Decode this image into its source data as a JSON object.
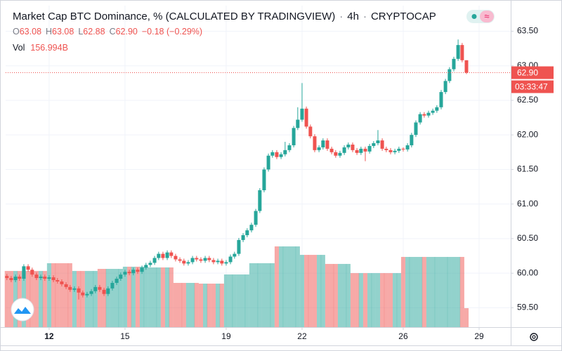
{
  "chart_data": {
    "type": "candlestick",
    "title": "Market Cap BTC Dominance, % (CALCULATED BY TRADINGVIEW)",
    "interval": "4h",
    "exchange": "CRYPTOCAP",
    "legend_ohlc": [
      {
        "key": "O",
        "value": "63.08"
      },
      {
        "key": "H",
        "value": "63.08"
      },
      {
        "key": "L",
        "value": "62.88"
      },
      {
        "key": "C",
        "value": "62.90"
      }
    ],
    "change": "−0.18 (−0.29%)",
    "up_color": "#26a69a",
    "down_color": "#ef5350",
    "grid": true,
    "xlim": [
      10.28,
      30.25
    ],
    "xticks": [
      12,
      15,
      19,
      22,
      26,
      29
    ],
    "ylim": [
      59.22,
      63.87
    ],
    "yticks": [
      {
        "value": 59.5,
        "label": "59.50"
      },
      {
        "value": 60,
        "label": "60.00"
      },
      {
        "value": 60.5,
        "label": "60.50"
      },
      {
        "value": 61,
        "label": "61.00"
      },
      {
        "value": 61.5,
        "label": "61.50"
      },
      {
        "value": 62,
        "label": "62.00"
      },
      {
        "value": 62.5,
        "label": "62.50"
      },
      {
        "value": 63,
        "label": "63.00"
      },
      {
        "value": 63.5,
        "label": "63.50"
      }
    ],
    "last_price": {
      "value": 62.9,
      "label": "62.90"
    },
    "countdown": "03:33:47",
    "x": [
      10.33,
      10.5,
      10.67,
      10.83,
      11,
      11.17,
      11.33,
      11.5,
      11.67,
      11.83,
      12,
      12.17,
      12.33,
      12.5,
      12.67,
      12.83,
      13,
      13.17,
      13.33,
      13.5,
      13.67,
      13.83,
      14,
      14.17,
      14.33,
      14.5,
      14.67,
      14.83,
      15,
      15.17,
      15.33,
      15.5,
      15.67,
      15.83,
      16,
      16.17,
      16.33,
      16.5,
      16.67,
      16.83,
      17,
      17.17,
      17.33,
      17.5,
      17.67,
      17.83,
      18,
      18.17,
      18.33,
      18.5,
      18.67,
      18.83,
      19,
      19.17,
      19.33,
      19.5,
      19.67,
      19.83,
      20,
      20.17,
      20.33,
      20.5,
      20.67,
      20.83,
      21,
      21.17,
      21.33,
      21.5,
      21.67,
      21.83,
      22,
      22.17,
      22.33,
      22.5,
      22.67,
      22.83,
      23,
      23.17,
      23.33,
      23.5,
      23.67,
      23.83,
      24,
      24.17,
      24.33,
      24.5,
      24.67,
      24.83,
      25,
      25.17,
      25.33,
      25.5,
      25.67,
      25.83,
      26,
      26.17,
      26.33,
      26.5,
      26.67,
      26.83,
      27,
      27.17,
      27.33,
      27.5,
      27.67,
      27.83,
      28,
      28.17,
      28.33,
      28.5
    ],
    "open": [
      59.96,
      59.93,
      59.9,
      59.95,
      59.92,
      60.1,
      60.05,
      59.98,
      59.93,
      59.95,
      59.92,
      59.94,
      59.9,
      59.88,
      59.84,
      59.8,
      59.76,
      59.78,
      59.72,
      59.68,
      59.7,
      59.74,
      59.8,
      59.76,
      59.7,
      59.78,
      59.86,
      59.92,
      59.98,
      60.02,
      60.0,
      60.05,
      60.02,
      60.08,
      60.12,
      60.15,
      60.22,
      60.28,
      60.22,
      60.3,
      60.25,
      60.2,
      60.18,
      60.14,
      60.16,
      60.22,
      60.2,
      60.18,
      60.22,
      60.19,
      60.16,
      60.18,
      60.14,
      60.16,
      60.24,
      60.28,
      60.48,
      60.55,
      60.62,
      60.7,
      60.9,
      61.2,
      61.5,
      61.7,
      61.75,
      61.68,
      61.72,
      61.78,
      61.85,
      62.1,
      62.22,
      62.38,
      62.12,
      61.98,
      61.78,
      61.82,
      61.92,
      61.8,
      61.75,
      61.7,
      61.74,
      61.82,
      61.86,
      61.78,
      61.74,
      61.8,
      61.76,
      61.84,
      61.88,
      61.92,
      61.8,
      61.78,
      61.75,
      61.77,
      61.8,
      61.79,
      61.85,
      62.0,
      62.18,
      62.3,
      62.28,
      62.32,
      62.35,
      62.4,
      62.62,
      62.78,
      62.95,
      63.1,
      63.3,
      63.08
    ],
    "high": [
      59.99,
      59.96,
      59.98,
      59.98,
      60.13,
      60.13,
      60.08,
      60.01,
      59.98,
      59.98,
      59.97,
      59.97,
      59.93,
      59.91,
      59.87,
      59.83,
      59.81,
      59.81,
      59.75,
      59.73,
      59.77,
      59.83,
      59.83,
      59.79,
      59.81,
      59.89,
      59.95,
      60.01,
      60.05,
      60.05,
      60.08,
      60.08,
      60.11,
      60.15,
      60.18,
      60.25,
      60.31,
      60.31,
      60.33,
      60.33,
      60.28,
      60.23,
      60.21,
      60.19,
      60.25,
      60.25,
      60.23,
      60.25,
      60.25,
      60.22,
      60.21,
      60.21,
      60.19,
      60.27,
      60.31,
      60.51,
      60.58,
      60.65,
      60.73,
      60.93,
      61.23,
      61.53,
      61.73,
      61.78,
      61.78,
      61.75,
      61.9,
      61.88,
      62.13,
      62.4,
      62.75,
      62.41,
      62.15,
      62.01,
      61.85,
      61.95,
      61.95,
      61.83,
      61.78,
      61.77,
      61.85,
      61.89,
      61.89,
      61.81,
      61.83,
      61.83,
      61.87,
      61.91,
      62.07,
      61.95,
      61.83,
      61.81,
      61.8,
      61.83,
      61.82,
      61.88,
      62.03,
      62.21,
      62.33,
      62.33,
      62.35,
      62.38,
      62.43,
      62.65,
      62.81,
      62.98,
      63.13,
      63.38,
      63.33,
      63.08
    ],
    "low": [
      59.9,
      59.87,
      59.87,
      59.89,
      59.89,
      60.02,
      59.95,
      59.9,
      59.9,
      59.89,
      59.89,
      59.87,
      59.85,
      59.81,
      59.77,
      59.73,
      59.73,
      59.62,
      59.65,
      59.65,
      59.67,
      59.71,
      59.73,
      59.67,
      59.67,
      59.75,
      59.83,
      59.89,
      59.95,
      59.97,
      59.97,
      59.99,
      59.99,
      60.05,
      60.09,
      60.12,
      60.19,
      60.19,
      60.19,
      60.22,
      60.17,
      60.15,
      60.11,
      60.11,
      60.13,
      60.17,
      60.15,
      60.15,
      60.16,
      60.13,
      60.13,
      60.11,
      60.11,
      60.13,
      60.21,
      60.25,
      60.45,
      60.52,
      60.59,
      60.67,
      60.87,
      61.17,
      61.47,
      61.67,
      61.65,
      61.65,
      61.69,
      61.75,
      61.82,
      62.07,
      62.19,
      62.09,
      61.95,
      61.75,
      61.75,
      61.79,
      61.77,
      61.72,
      61.67,
      61.67,
      61.71,
      61.79,
      61.75,
      61.71,
      61.71,
      61.62,
      61.73,
      61.81,
      61.85,
      61.77,
      61.75,
      61.72,
      61.72,
      61.74,
      61.76,
      61.76,
      61.82,
      61.97,
      62.15,
      62.25,
      62.25,
      62.29,
      62.32,
      62.37,
      62.59,
      62.75,
      62.92,
      63.07,
      63.05,
      62.88
    ],
    "close": [
      59.93,
      59.9,
      59.95,
      59.92,
      60.1,
      60.05,
      59.98,
      59.93,
      59.95,
      59.92,
      59.94,
      59.9,
      59.88,
      59.84,
      59.8,
      59.76,
      59.78,
      59.72,
      59.68,
      59.7,
      59.74,
      59.8,
      59.76,
      59.7,
      59.78,
      59.86,
      59.92,
      59.98,
      60.02,
      60.0,
      60.05,
      60.02,
      60.08,
      60.12,
      60.15,
      60.22,
      60.28,
      60.22,
      60.3,
      60.25,
      60.2,
      60.18,
      60.14,
      60.16,
      60.22,
      60.2,
      60.18,
      60.22,
      60.19,
      60.16,
      60.18,
      60.14,
      60.16,
      60.24,
      60.28,
      60.48,
      60.55,
      60.62,
      60.7,
      60.9,
      61.2,
      61.5,
      61.7,
      61.75,
      61.68,
      61.72,
      61.78,
      61.85,
      62.1,
      62.22,
      62.38,
      62.12,
      61.98,
      61.78,
      61.82,
      61.92,
      61.8,
      61.75,
      61.7,
      61.74,
      61.82,
      61.86,
      61.78,
      61.74,
      61.8,
      61.76,
      61.84,
      61.88,
      61.92,
      61.8,
      61.78,
      61.75,
      61.77,
      61.8,
      61.79,
      61.85,
      62.0,
      62.18,
      62.3,
      62.28,
      62.32,
      62.35,
      62.4,
      62.62,
      62.78,
      62.95,
      63.1,
      63.3,
      63.08,
      62.9
    ],
    "volume": {
      "name": "Vol",
      "values": [
        465,
        465,
        465,
        465,
        465,
        465,
        465,
        465,
        465,
        465,
        529,
        529,
        529,
        529,
        529,
        529,
        465,
        465,
        465,
        465,
        465,
        465,
        482,
        482,
        482,
        482,
        482,
        482,
        500,
        500,
        500,
        500,
        500,
        500,
        494,
        494,
        494,
        494,
        494,
        494,
        366,
        366,
        366,
        366,
        366,
        366,
        360,
        360,
        360,
        360,
        360,
        360,
        436,
        436,
        436,
        436,
        436,
        436,
        529,
        529,
        529,
        529,
        529,
        529,
        668,
        668,
        668,
        668,
        668,
        668,
        598,
        598,
        598,
        598,
        598,
        598,
        523,
        523,
        523,
        523,
        523,
        523,
        447,
        447,
        447,
        447,
        447,
        447,
        447,
        447,
        447,
        447,
        447,
        447,
        581,
        581,
        581,
        581,
        581,
        581,
        581,
        581,
        581,
        581,
        581,
        581,
        581,
        581,
        581,
        156.994
      ],
      "value_labels": [
        null,
        null,
        null,
        null,
        null,
        null,
        null,
        null,
        null,
        null,
        null,
        null,
        null,
        null,
        null,
        null,
        null,
        null,
        null,
        null,
        null,
        null,
        null,
        null,
        null,
        null,
        null,
        null,
        null,
        null,
        null,
        null,
        null,
        null,
        null,
        null,
        null,
        null,
        null,
        null,
        null,
        null,
        null,
        null,
        null,
        null,
        null,
        null,
        null,
        null,
        null,
        null,
        null,
        null,
        null,
        null,
        null,
        null,
        null,
        null,
        null,
        null,
        null,
        null,
        null,
        null,
        null,
        null,
        null,
        null,
        null,
        null,
        null,
        null,
        null,
        null,
        null,
        null,
        null,
        null,
        null,
        null,
        null,
        null,
        null,
        null,
        null,
        null,
        null,
        null,
        null,
        null,
        null,
        null,
        null,
        null,
        null,
        null,
        null,
        null,
        null,
        null,
        null,
        null,
        null,
        null,
        null,
        null,
        null,
        "156.994B"
      ]
    }
  }
}
